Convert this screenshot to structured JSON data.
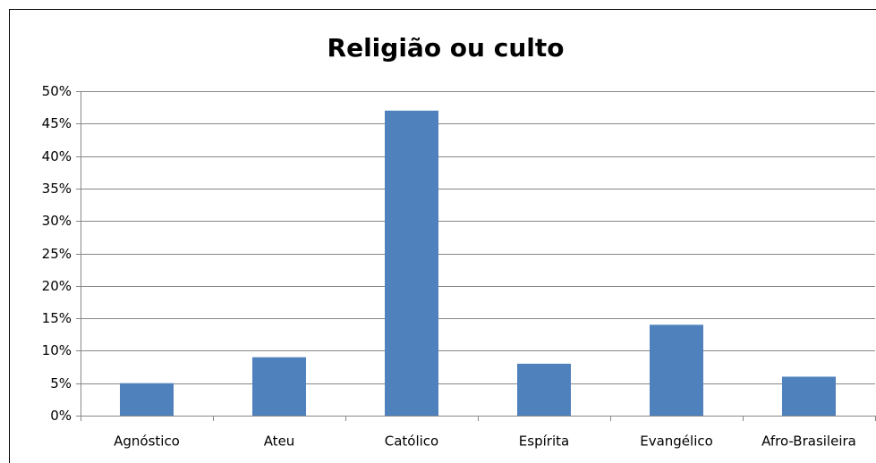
{
  "chart_data": {
    "type": "bar",
    "title": "Religião ou culto",
    "categories": [
      "Agnóstico",
      "Ateu",
      "Católico",
      "Espírita",
      "Evangélico",
      "Afro-Brasileira"
    ],
    "values": [
      5,
      9,
      47,
      8,
      14,
      6
    ],
    "color": "#4f81bd",
    "ylim": [
      0,
      50
    ],
    "yticks": [
      {
        "value": 0,
        "label": "0%"
      },
      {
        "value": 5,
        "label": "5%"
      },
      {
        "value": 10,
        "label": "10%"
      },
      {
        "value": 15,
        "label": "15%"
      },
      {
        "value": 20,
        "label": "20%"
      },
      {
        "value": 25,
        "label": "25%"
      },
      {
        "value": 30,
        "label": "30%"
      },
      {
        "value": 35,
        "label": "35%"
      },
      {
        "value": 40,
        "label": "40%"
      },
      {
        "value": 45,
        "label": "45%"
      },
      {
        "value": 50,
        "label": "50%"
      }
    ],
    "grid": true
  }
}
